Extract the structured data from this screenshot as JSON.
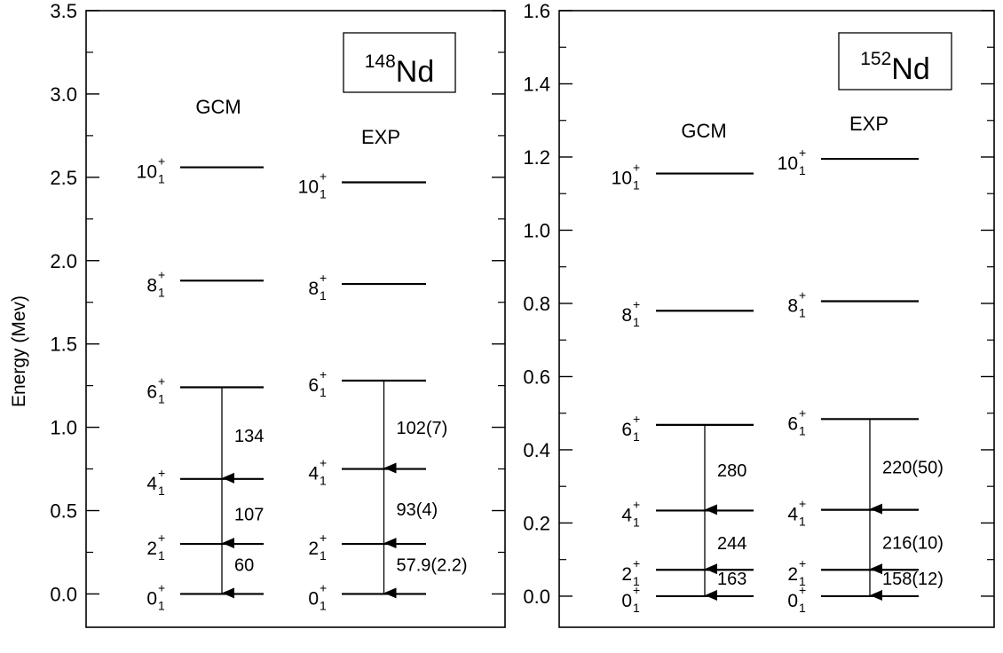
{
  "y_axis_label": "Energy (Mev)",
  "panels": [
    {
      "nucleus": {
        "mass": "148",
        "symbol": "Nd"
      },
      "y_ticks": [
        "0.0",
        "0.5",
        "1.0",
        "1.5",
        "2.0",
        "2.5",
        "3.0",
        "3.5"
      ],
      "y_tick_values": [
        0,
        0.5,
        1.0,
        1.5,
        2.0,
        2.5,
        3.0,
        3.5
      ],
      "y_range": [
        -0.2,
        3.5
      ],
      "columns": [
        {
          "label": "GCM",
          "levels": [
            {
              "spin": "0",
              "sub": "1",
              "parity": "+",
              "energy": 0.0
            },
            {
              "spin": "2",
              "sub": "1",
              "parity": "+",
              "energy": 0.3
            },
            {
              "spin": "4",
              "sub": "1",
              "parity": "+",
              "energy": 0.69
            },
            {
              "spin": "6",
              "sub": "1",
              "parity": "+",
              "energy": 1.24
            },
            {
              "spin": "8",
              "sub": "1",
              "parity": "+",
              "energy": 1.88
            },
            {
              "spin": "10",
              "sub": "1",
              "parity": "+",
              "energy": 2.56
            }
          ],
          "transitions": [
            {
              "from": 1.24,
              "to": 0.69,
              "label": "134"
            },
            {
              "from": 0.69,
              "to": 0.3,
              "label": "107"
            },
            {
              "from": 0.3,
              "to": 0.0,
              "label": "60"
            }
          ]
        },
        {
          "label": "EXP",
          "levels": [
            {
              "spin": "0",
              "sub": "1",
              "parity": "+",
              "energy": 0.0
            },
            {
              "spin": "2",
              "sub": "1",
              "parity": "+",
              "energy": 0.3
            },
            {
              "spin": "4",
              "sub": "1",
              "parity": "+",
              "energy": 0.75
            },
            {
              "spin": "6",
              "sub": "1",
              "parity": "+",
              "energy": 1.28
            },
            {
              "spin": "8",
              "sub": "1",
              "parity": "+",
              "energy": 1.86
            },
            {
              "spin": "10",
              "sub": "1",
              "parity": "+",
              "energy": 2.47
            }
          ],
          "transitions": [
            {
              "from": 1.28,
              "to": 0.75,
              "label": "102(7)"
            },
            {
              "from": 0.75,
              "to": 0.3,
              "label": "93(4)"
            },
            {
              "from": 0.3,
              "to": 0.0,
              "label": "57.9(2.2)"
            }
          ]
        }
      ]
    },
    {
      "nucleus": {
        "mass": "152",
        "symbol": "Nd"
      },
      "y_ticks": [
        "0.0",
        "0.2",
        "0.4",
        "0.6",
        "0.8",
        "1.0",
        "1.2",
        "1.4",
        "1.6"
      ],
      "y_tick_values": [
        0,
        0.2,
        0.4,
        0.6,
        0.8,
        1.0,
        1.2,
        1.4,
        1.6
      ],
      "y_range": [
        -0.085,
        1.6
      ],
      "columns": [
        {
          "label": "GCM",
          "levels": [
            {
              "spin": "0",
              "sub": "1",
              "parity": "+",
              "energy": 0.0
            },
            {
              "spin": "2",
              "sub": "1",
              "parity": "+",
              "energy": 0.072
            },
            {
              "spin": "4",
              "sub": "1",
              "parity": "+",
              "energy": 0.234
            },
            {
              "spin": "6",
              "sub": "1",
              "parity": "+",
              "energy": 0.468
            },
            {
              "spin": "8",
              "sub": "1",
              "parity": "+",
              "energy": 0.78
            },
            {
              "spin": "10",
              "sub": "1",
              "parity": "+",
              "energy": 1.155
            }
          ],
          "transitions": [
            {
              "from": 0.468,
              "to": 0.234,
              "label": "280"
            },
            {
              "from": 0.234,
              "to": 0.072,
              "label": "244"
            },
            {
              "from": 0.072,
              "to": 0.0,
              "label": "163"
            }
          ]
        },
        {
          "label": "EXP",
          "levels": [
            {
              "spin": "0",
              "sub": "1",
              "parity": "+",
              "energy": 0.0
            },
            {
              "spin": "2",
              "sub": "1",
              "parity": "+",
              "energy": 0.072
            },
            {
              "spin": "4",
              "sub": "1",
              "parity": "+",
              "energy": 0.236
            },
            {
              "spin": "6",
              "sub": "1",
              "parity": "+",
              "energy": 0.484
            },
            {
              "spin": "8",
              "sub": "1",
              "parity": "+",
              "energy": 0.806
            },
            {
              "spin": "10",
              "sub": "1",
              "parity": "+",
              "energy": 1.195
            }
          ],
          "transitions": [
            {
              "from": 0.484,
              "to": 0.236,
              "label": "220(50)"
            },
            {
              "from": 0.236,
              "to": 0.072,
              "label": "216(10)"
            },
            {
              "from": 0.072,
              "to": 0.0,
              "label": "158(12)"
            }
          ]
        }
      ]
    }
  ]
}
